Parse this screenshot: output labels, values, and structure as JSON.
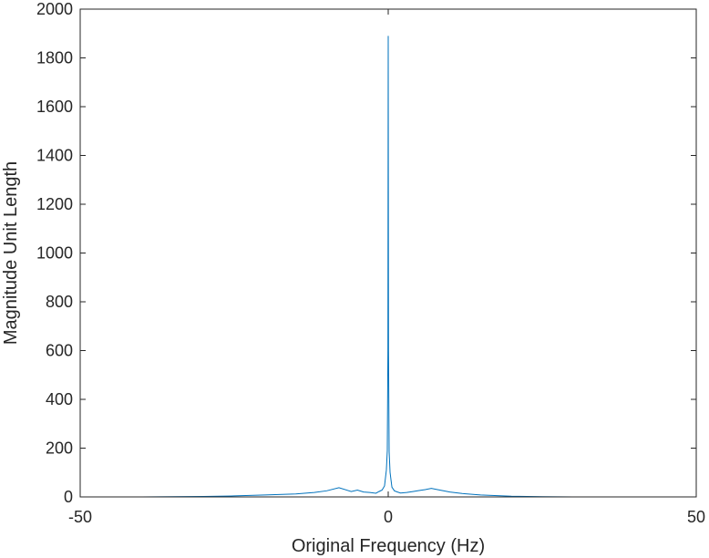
{
  "chart_data": {
    "type": "line",
    "title": "",
    "xlabel": "Original Frequency (Hz)",
    "ylabel": "Magnitude Unit Length",
    "xlim": [
      -50,
      50
    ],
    "ylim": [
      0,
      2000
    ],
    "xticks": [
      -50,
      0,
      50
    ],
    "yticks": [
      0,
      200,
      400,
      600,
      800,
      1000,
      1200,
      1400,
      1600,
      1800,
      2000
    ],
    "grid": false,
    "color": "#0072BD",
    "series": [
      {
        "x": [
          -50,
          -40,
          -30,
          -25,
          -20,
          -15,
          -12,
          -10,
          -8,
          -6,
          -5,
          -4,
          -3,
          -2,
          -1.5,
          -1,
          -0.6,
          -0.3,
          -0.15,
          -0.05,
          0,
          0.05,
          0.15,
          0.3,
          0.6,
          1,
          1.5,
          2,
          3,
          4,
          5,
          6,
          7,
          8,
          10,
          12,
          15,
          20,
          25,
          30,
          40,
          50
        ],
        "values": [
          0,
          0,
          2,
          4,
          8,
          12,
          18,
          25,
          38,
          22,
          28,
          20,
          18,
          15,
          22,
          28,
          45,
          110,
          190,
          600,
          1890,
          600,
          185,
          100,
          40,
          25,
          20,
          16,
          18,
          22,
          26,
          30,
          35,
          30,
          20,
          14,
          8,
          3,
          1,
          0,
          0,
          0
        ]
      }
    ]
  }
}
